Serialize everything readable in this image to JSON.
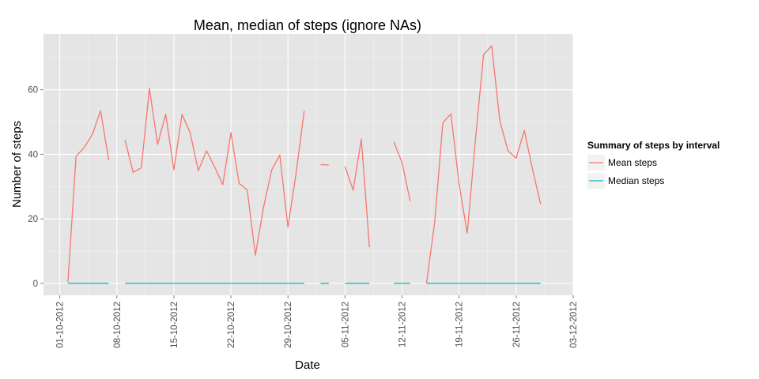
{
  "chart_data": {
    "type": "line",
    "title": "Mean, median of steps (ignore NAs)",
    "xlabel": "Date",
    "ylabel": "Number of steps",
    "x_ticks": [
      "01-10-2012",
      "08-10-2012",
      "15-10-2012",
      "22-10-2012",
      "29-10-2012",
      "05-11-2012",
      "12-11-2012",
      "19-11-2012",
      "26-11-2012",
      "03-12-2012"
    ],
    "x_range": [
      "2012-09-29",
      "2012-12-03"
    ],
    "y_ticks": [
      0,
      20,
      40,
      60
    ],
    "ylim": [
      -3.7,
      77.3
    ],
    "grid": true,
    "legend": {
      "title": "Summary of steps by interval",
      "position": "right"
    },
    "series": [
      {
        "name": "Mean steps",
        "color": "#F8766D",
        "points": [
          [
            "2012-10-02",
            0.4
          ],
          [
            "2012-10-03",
            39.4
          ],
          [
            "2012-10-04",
            42.1
          ],
          [
            "2012-10-05",
            46.2
          ],
          [
            "2012-10-06",
            53.5
          ],
          [
            "2012-10-07",
            38.2
          ],
          null,
          [
            "2012-10-09",
            44.5
          ],
          [
            "2012-10-10",
            34.4
          ],
          [
            "2012-10-11",
            35.8
          ],
          [
            "2012-10-12",
            60.4
          ],
          [
            "2012-10-13",
            43.1
          ],
          [
            "2012-10-14",
            52.4
          ],
          [
            "2012-10-15",
            35.2
          ],
          [
            "2012-10-16",
            52.4
          ],
          [
            "2012-10-17",
            46.7
          ],
          [
            "2012-10-18",
            34.9
          ],
          [
            "2012-10-19",
            41.1
          ],
          [
            "2012-10-20",
            36.1
          ],
          [
            "2012-10-21",
            30.6
          ],
          [
            "2012-10-22",
            46.7
          ],
          [
            "2012-10-23",
            31.0
          ],
          [
            "2012-10-24",
            29.0
          ],
          [
            "2012-10-25",
            8.7
          ],
          [
            "2012-10-26",
            23.5
          ],
          [
            "2012-10-27",
            35.1
          ],
          [
            "2012-10-28",
            39.8
          ],
          [
            "2012-10-29",
            17.4
          ],
          [
            "2012-10-30",
            34.1
          ],
          [
            "2012-10-31",
            53.5
          ],
          null,
          [
            "2012-11-02",
            36.8
          ],
          [
            "2012-11-03",
            36.7
          ],
          null,
          [
            "2012-11-05",
            36.2
          ],
          [
            "2012-11-06",
            28.9
          ],
          [
            "2012-11-07",
            44.7
          ],
          [
            "2012-11-08",
            11.2
          ],
          null,
          [
            "2012-11-11",
            43.8
          ],
          [
            "2012-11-12",
            37.4
          ],
          [
            "2012-11-13",
            25.5
          ],
          null,
          [
            "2012-11-15",
            0.1
          ],
          [
            "2012-11-16",
            18.9
          ],
          [
            "2012-11-17",
            49.8
          ],
          [
            "2012-11-18",
            52.5
          ],
          [
            "2012-11-19",
            30.7
          ],
          [
            "2012-11-20",
            15.5
          ],
          [
            "2012-11-21",
            44.4
          ],
          [
            "2012-11-22",
            70.9
          ],
          [
            "2012-11-23",
            73.6
          ],
          [
            "2012-11-24",
            50.3
          ],
          [
            "2012-11-25",
            41.1
          ],
          [
            "2012-11-26",
            38.8
          ],
          [
            "2012-11-27",
            47.4
          ],
          [
            "2012-11-28",
            35.4
          ],
          [
            "2012-11-29",
            24.5
          ]
        ]
      },
      {
        "name": "Median steps",
        "color": "#00BFC4",
        "points": [
          [
            "2012-10-02",
            0
          ],
          [
            "2012-10-07",
            0
          ],
          null,
          [
            "2012-10-09",
            0
          ],
          [
            "2012-10-31",
            0
          ],
          null,
          [
            "2012-11-02",
            0
          ],
          [
            "2012-11-03",
            0
          ],
          null,
          [
            "2012-11-05",
            0
          ],
          [
            "2012-11-08",
            0
          ],
          null,
          [
            "2012-11-11",
            0
          ],
          [
            "2012-11-13",
            0
          ],
          null,
          [
            "2012-11-15",
            0
          ],
          [
            "2012-11-29",
            0
          ]
        ]
      }
    ]
  }
}
